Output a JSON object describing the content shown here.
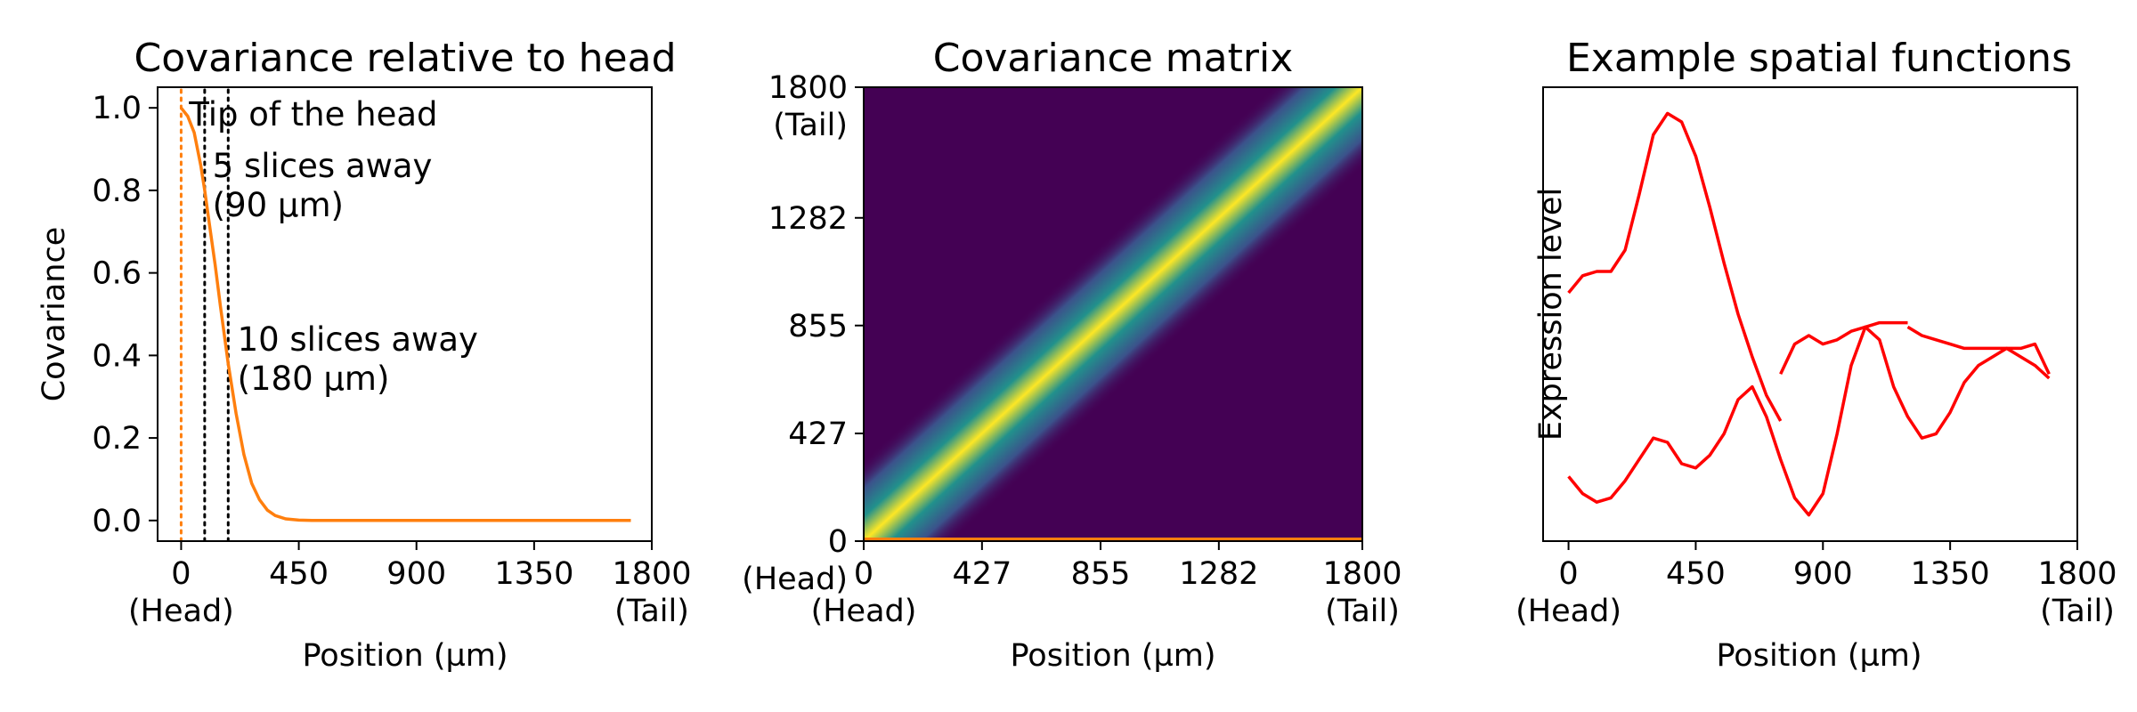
{
  "chart_data": [
    {
      "type": "line",
      "title": "Covariance relative to head",
      "xlabel": "Position (µm)",
      "ylabel": "Covariance",
      "xlim": [
        -90,
        1800
      ],
      "ylim": [
        -0.05,
        1.05
      ],
      "xticks": [
        {
          "value": 0,
          "label": "0\n(Head)"
        },
        {
          "value": 450,
          "label": "450"
        },
        {
          "value": 900,
          "label": "900"
        },
        {
          "value": 1350,
          "label": "1350"
        },
        {
          "value": 1800,
          "label": "1800\n(Tail)"
        }
      ],
      "yticks": [
        {
          "value": 0.0,
          "label": "0.0"
        },
        {
          "value": 0.2,
          "label": "0.2"
        },
        {
          "value": 0.4,
          "label": "0.4"
        },
        {
          "value": 0.6,
          "label": "0.6"
        },
        {
          "value": 0.8,
          "label": "0.8"
        },
        {
          "value": 1.0,
          "label": "1.0"
        }
      ],
      "line_color": "#ff7f0e",
      "series": [
        {
          "x": [
            0,
            25,
            50,
            75,
            90,
            110,
            130,
            150,
            180,
            210,
            240,
            270,
            300,
            330,
            360,
            400,
            450,
            500,
            600,
            800,
            1000,
            1200,
            1400,
            1600,
            1720
          ],
          "y": [
            1.0,
            0.98,
            0.94,
            0.86,
            0.8,
            0.71,
            0.62,
            0.52,
            0.38,
            0.26,
            0.16,
            0.09,
            0.05,
            0.025,
            0.012,
            0.004,
            0.001,
            0.0,
            0.0,
            0.0,
            0.0,
            0.0,
            0.0,
            0.0,
            0.0
          ]
        }
      ],
      "vlines": [
        {
          "x": 0,
          "color": "#ff7f0e",
          "style": "dotted"
        },
        {
          "x": 90,
          "color": "#000000",
          "style": "dotted"
        },
        {
          "x": 180,
          "color": "#000000",
          "style": "dotted"
        }
      ],
      "annotations": [
        {
          "text": "Tip of the head",
          "x": 30,
          "y": 0.985
        },
        {
          "text": "5 slices away\n(90 µm)",
          "x": 120,
          "y": 0.86
        },
        {
          "text": "10 slices away\n(180 µm)",
          "x": 215,
          "y": 0.44
        }
      ]
    },
    {
      "type": "heatmap",
      "title": "Covariance matrix",
      "xlabel": "Position (µm)",
      "colormap": "viridis",
      "xlim": [
        0,
        1800
      ],
      "ylim": [
        0,
        1800
      ],
      "xticks": [
        {
          "value": 0,
          "label": "0\n(Head)"
        },
        {
          "value": 427,
          "label": "427"
        },
        {
          "value": 855,
          "label": "855"
        },
        {
          "value": 1282,
          "label": "1282"
        },
        {
          "value": 1800,
          "label": "1800\n(Tail)"
        }
      ],
      "yticks": [
        {
          "value": 0,
          "label": "0\n(Head)"
        },
        {
          "value": 427,
          "label": "427"
        },
        {
          "value": 855,
          "label": "855"
        },
        {
          "value": 1282,
          "label": "1282"
        },
        {
          "value": 1800,
          "label": "1800\n(Tail)"
        }
      ],
      "colors": {
        "low": "#440154",
        "mid": "#21918c",
        "high": "#fde725"
      },
      "band_halfwidth_um": 220,
      "bottom_line_color": "#ff7f0e"
    },
    {
      "type": "line",
      "title": "Example spatial functions",
      "xlabel": "Position (µm)",
      "ylabel": "Expression level",
      "xlim": [
        -90,
        1800
      ],
      "ylim": [
        0,
        1
      ],
      "y_ticks_shown": false,
      "line_color": "#ff0000",
      "xticks": [
        {
          "value": 0,
          "label": "0\n(Head)"
        },
        {
          "value": 450,
          "label": "450"
        },
        {
          "value": 900,
          "label": "900"
        },
        {
          "value": 1350,
          "label": "1350"
        },
        {
          "value": 1800,
          "label": "1800\n(Tail)"
        }
      ],
      "series": [
        {
          "x": [
            0,
            50,
            100,
            150,
            200,
            250,
            300,
            350,
            400,
            450,
            500,
            550,
            600,
            650,
            700,
            750
          ],
          "y": [
            0.55,
            0.59,
            0.6,
            0.6,
            0.65,
            0.78,
            0.92,
            0.97,
            0.95,
            0.87,
            0.75,
            0.62,
            0.5,
            0.4,
            0.31,
            0.25
          ]
        },
        {
          "x": [
            750,
            800,
            850,
            900,
            950,
            1000,
            1050,
            1100,
            1150,
            1200
          ],
          "y": [
            0.36,
            0.43,
            0.45,
            0.43,
            0.44,
            0.46,
            0.47,
            0.48,
            0.48,
            0.48
          ]
        },
        {
          "x": [
            1200,
            1250,
            1300,
            1350,
            1400,
            1450,
            1500,
            1550,
            1600,
            1650,
            1700
          ],
          "y": [
            0.47,
            0.45,
            0.44,
            0.43,
            0.42,
            0.42,
            0.42,
            0.42,
            0.42,
            0.43,
            0.36
          ]
        },
        {
          "x": [
            0,
            50,
            100,
            150,
            200,
            250,
            300,
            350,
            400,
            450,
            500,
            550,
            600,
            650,
            700,
            750,
            800,
            850,
            900,
            950,
            1000,
            1050,
            1100,
            1150,
            1200,
            1250,
            1300,
            1350,
            1400,
            1450,
            1500,
            1550,
            1600,
            1650,
            1700
          ],
          "y": [
            0.12,
            0.08,
            0.06,
            0.07,
            0.11,
            0.16,
            0.21,
            0.2,
            0.15,
            0.14,
            0.17,
            0.22,
            0.3,
            0.33,
            0.26,
            0.16,
            0.07,
            0.03,
            0.08,
            0.22,
            0.38,
            0.47,
            0.44,
            0.33,
            0.26,
            0.21,
            0.22,
            0.27,
            0.34,
            0.38,
            0.4,
            0.42,
            0.4,
            0.38,
            0.35
          ]
        }
      ]
    }
  ]
}
